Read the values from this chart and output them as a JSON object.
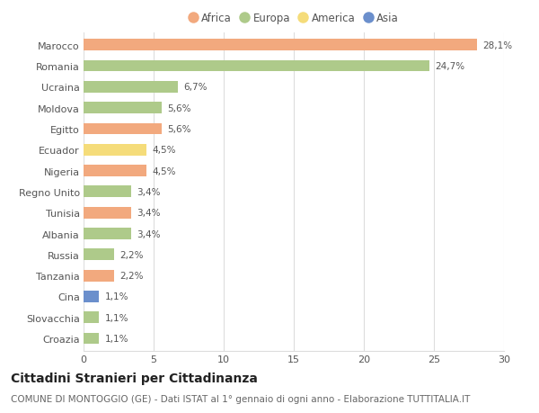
{
  "countries": [
    "Croazia",
    "Slovacchia",
    "Cina",
    "Tanzania",
    "Russia",
    "Albania",
    "Tunisia",
    "Regno Unito",
    "Nigeria",
    "Ecuador",
    "Egitto",
    "Moldova",
    "Ucraina",
    "Romania",
    "Marocco"
  ],
  "values": [
    1.1,
    1.1,
    1.1,
    2.2,
    2.2,
    3.4,
    3.4,
    3.4,
    4.5,
    4.5,
    5.6,
    5.6,
    6.7,
    24.7,
    28.1
  ],
  "labels": [
    "1,1%",
    "1,1%",
    "1,1%",
    "2,2%",
    "2,2%",
    "3,4%",
    "3,4%",
    "3,4%",
    "4,5%",
    "4,5%",
    "5,6%",
    "5,6%",
    "6,7%",
    "24,7%",
    "28,1%"
  ],
  "continents": [
    "Europa",
    "Europa",
    "Asia",
    "Africa",
    "Europa",
    "Europa",
    "Africa",
    "Europa",
    "Africa",
    "America",
    "Africa",
    "Europa",
    "Europa",
    "Europa",
    "Africa"
  ],
  "colors": {
    "Africa": "#F2A97E",
    "Europa": "#AECA8A",
    "America": "#F5DC7A",
    "Asia": "#6B8FCC"
  },
  "xlim": [
    0,
    30
  ],
  "xticks": [
    0,
    5,
    10,
    15,
    20,
    25,
    30
  ],
  "title": "Cittadini Stranieri per Cittadinanza",
  "subtitle": "COMUNE DI MONTOGGIO (GE) - Dati ISTAT al 1° gennaio di ogni anno - Elaborazione TUTTITALIA.IT",
  "background_color": "#ffffff",
  "bar_height": 0.55,
  "grid_color": "#dddddd",
  "text_color": "#555555",
  "title_fontsize": 10,
  "subtitle_fontsize": 7.5,
  "label_fontsize": 7.5,
  "ytick_fontsize": 8,
  "xtick_fontsize": 8,
  "legend_fontsize": 8.5
}
